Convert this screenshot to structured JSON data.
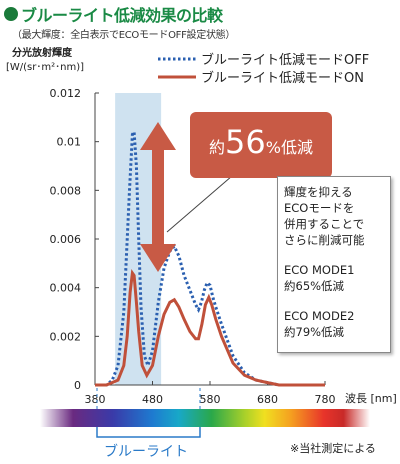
{
  "header": {
    "title": "ブルーライト低減効果の比較",
    "subtitle": "（最大輝度：全白表示でECOモードOFF設定状態）"
  },
  "chart_data": {
    "type": "line",
    "ylabel_line1": "分光放射輝度",
    "ylabel_line2": "[W/(sr･m²･nm)]",
    "xlabel": "波長 [nm]",
    "xlim": [
      380,
      780
    ],
    "ylim": [
      0,
      0.012
    ],
    "x_ticks": [
      "380",
      "480",
      "580",
      "680",
      "780"
    ],
    "y_ticks": [
      "0",
      "0.002",
      "0.004",
      "0.006",
      "0.008",
      "0.01",
      "0.012"
    ],
    "grid": false,
    "legend_position": "top",
    "blue_light_region": [
      415,
      495
    ],
    "series": [
      {
        "name": "ブルーライト低減モードOFF",
        "style": "dotted",
        "color": "#2a5fb0",
        "points": [
          [
            380,
            0
          ],
          [
            400,
            0
          ],
          [
            410,
            0.0002
          ],
          [
            420,
            0.0008
          ],
          [
            430,
            0.003
          ],
          [
            440,
            0.008
          ],
          [
            445,
            0.0103
          ],
          [
            448,
            0.0104
          ],
          [
            452,
            0.009
          ],
          [
            456,
            0.006
          ],
          [
            460,
            0.0032
          ],
          [
            466,
            0.0012
          ],
          [
            472,
            0.0008
          ],
          [
            480,
            0.0014
          ],
          [
            490,
            0.0034
          ],
          [
            500,
            0.0048
          ],
          [
            510,
            0.0055
          ],
          [
            518,
            0.0057
          ],
          [
            526,
            0.0053
          ],
          [
            535,
            0.0045
          ],
          [
            545,
            0.0039
          ],
          [
            555,
            0.0033
          ],
          [
            560,
            0.0031
          ],
          [
            565,
            0.0034
          ],
          [
            570,
            0.0039
          ],
          [
            575,
            0.0042
          ],
          [
            580,
            0.0041
          ],
          [
            585,
            0.0036
          ],
          [
            590,
            0.0032
          ],
          [
            600,
            0.0025
          ],
          [
            620,
            0.0012
          ],
          [
            640,
            0.0005
          ],
          [
            660,
            0.0002
          ],
          [
            680,
            0.0001
          ],
          [
            700,
            0
          ],
          [
            780,
            0
          ]
        ]
      },
      {
        "name": "ブルーライト低減モードON",
        "style": "solid",
        "color": "#c0503a",
        "points": [
          [
            380,
            0
          ],
          [
            400,
            0
          ],
          [
            420,
            0.0002
          ],
          [
            430,
            0.0008
          ],
          [
            436,
            0.002
          ],
          [
            441,
            0.0038
          ],
          [
            445,
            0.0046
          ],
          [
            448,
            0.0045
          ],
          [
            452,
            0.0034
          ],
          [
            456,
            0.0022
          ],
          [
            462,
            0.0008
          ],
          [
            470,
            0.0004
          ],
          [
            480,
            0.0008
          ],
          [
            490,
            0.002
          ],
          [
            500,
            0.0029
          ],
          [
            510,
            0.0034
          ],
          [
            518,
            0.0035
          ],
          [
            526,
            0.0032
          ],
          [
            535,
            0.0027
          ],
          [
            545,
            0.0022
          ],
          [
            555,
            0.0019
          ],
          [
            560,
            0.0019
          ],
          [
            566,
            0.0025
          ],
          [
            572,
            0.0033
          ],
          [
            578,
            0.0036
          ],
          [
            583,
            0.0033
          ],
          [
            590,
            0.0027
          ],
          [
            600,
            0.002
          ],
          [
            620,
            0.0009
          ],
          [
            640,
            0.0004
          ],
          [
            660,
            0.0002
          ],
          [
            680,
            0.0001
          ],
          [
            700,
            0
          ],
          [
            780,
            0
          ]
        ]
      }
    ],
    "annotation": {
      "prefix": "約",
      "value": "56",
      "suffix": "%低減"
    }
  },
  "note": {
    "lines_a": [
      "輝度を抑える",
      "ECOモードを",
      "併用することで",
      "さらに削減可能"
    ],
    "lines_b": [
      "ECO MODE1",
      "約65%低減"
    ],
    "lines_c": [
      "ECO MODE2",
      "約79%低減"
    ]
  },
  "spectrum": {
    "blue_light_label": "ブルーライト"
  },
  "footnote": "※当社測定による",
  "colors": {
    "title_green": "#1a8a45",
    "highlight_blue": "#cfe2f0",
    "annotation_red": "#c85a45",
    "axis": "#444444"
  }
}
